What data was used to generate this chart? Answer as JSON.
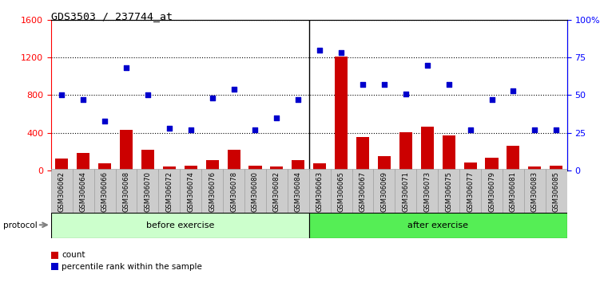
{
  "title": "GDS3503 / 237744_at",
  "categories": [
    "GSM306062",
    "GSM306064",
    "GSM306066",
    "GSM306068",
    "GSM306070",
    "GSM306072",
    "GSM306074",
    "GSM306076",
    "GSM306078",
    "GSM306080",
    "GSM306082",
    "GSM306084",
    "GSM306063",
    "GSM306065",
    "GSM306067",
    "GSM306069",
    "GSM306071",
    "GSM306073",
    "GSM306075",
    "GSM306077",
    "GSM306079",
    "GSM306081",
    "GSM306083",
    "GSM306085"
  ],
  "count_values": [
    130,
    190,
    75,
    430,
    225,
    40,
    55,
    115,
    225,
    55,
    45,
    110,
    80,
    1210,
    355,
    150,
    410,
    470,
    375,
    90,
    140,
    260,
    40,
    50
  ],
  "percentile_values": [
    50,
    47,
    33,
    68,
    50,
    28,
    27,
    48,
    54,
    27,
    35,
    47,
    80,
    78,
    57,
    57,
    51,
    70,
    57,
    27,
    47,
    53,
    27,
    27
  ],
  "bar_color": "#cc0000",
  "dot_color": "#0000cc",
  "before_count": 12,
  "after_count": 12,
  "before_label": "before exercise",
  "after_label": "after exercise",
  "protocol_label": "protocol",
  "before_color": "#ccffcc",
  "after_color": "#55ee55",
  "ylim_left": [
    0,
    1600
  ],
  "ylim_right": [
    0,
    100
  ],
  "yticks_left": [
    0,
    400,
    800,
    1200,
    1600
  ],
  "yticks_right": [
    0,
    25,
    50,
    75,
    100
  ],
  "legend_count": "count",
  "legend_percentile": "percentile rank within the sample",
  "plot_bg": "#e8e8e8",
  "xticklabel_bg": "#d0d0d0"
}
